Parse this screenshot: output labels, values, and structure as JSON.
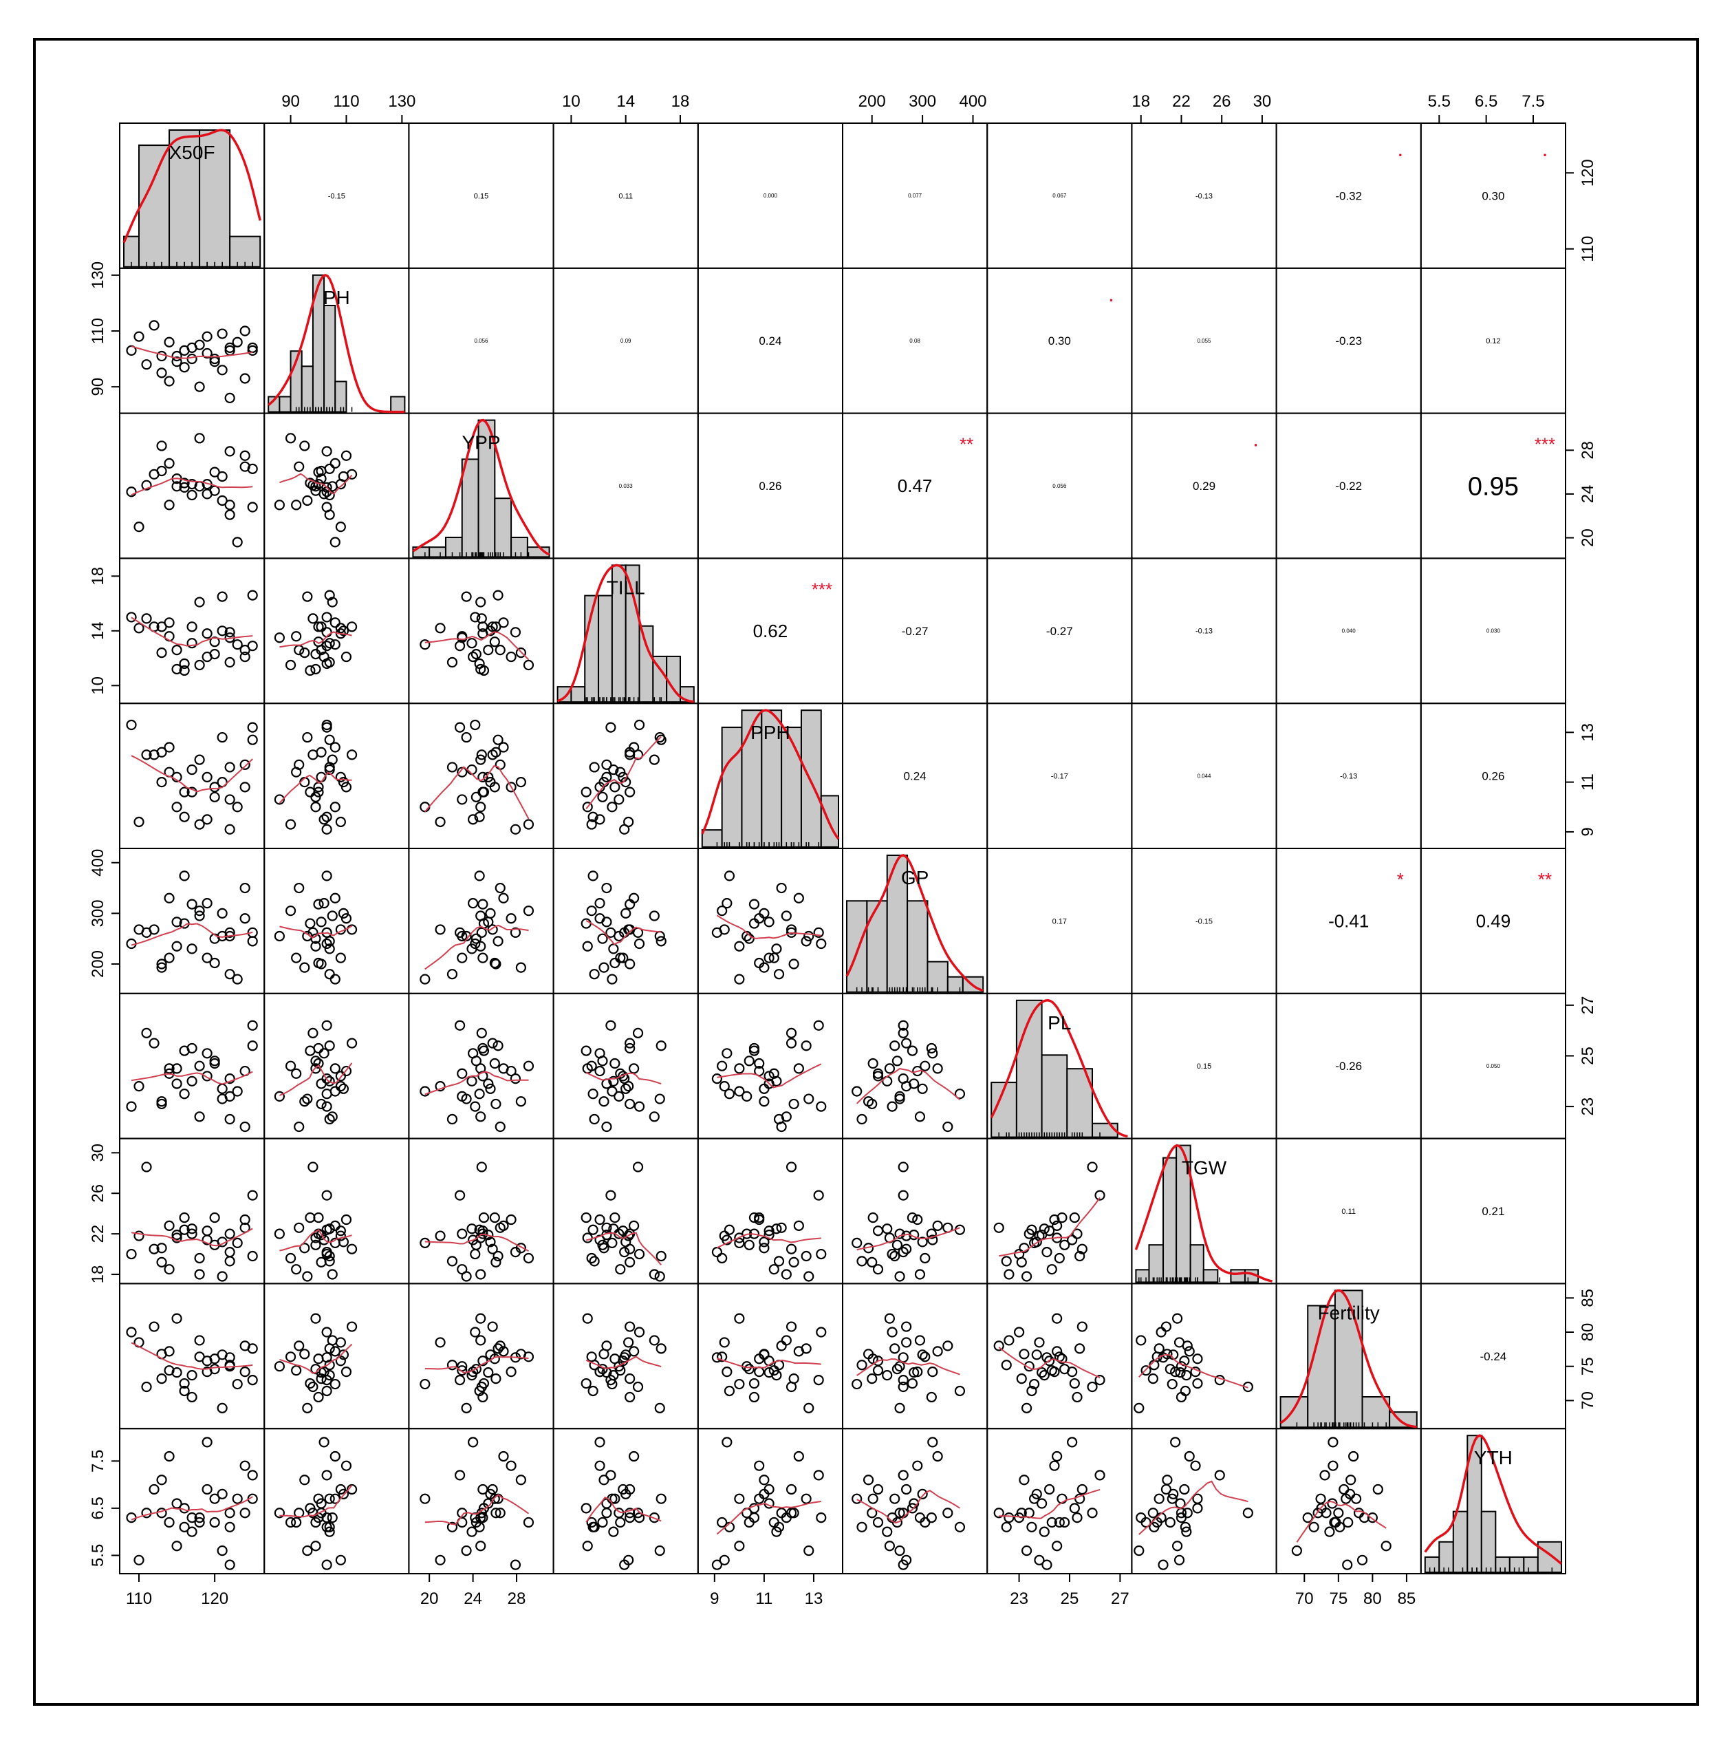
{
  "chart_data": {
    "type": "scatter-matrix",
    "variables": [
      "X50F",
      "PH",
      "YPP",
      "TILL",
      "PPH",
      "GP",
      "PL",
      "TGW",
      "Fertility",
      "YTH"
    ],
    "ranges": [
      [
        108,
        126
      ],
      [
        82,
        131
      ],
      [
        18.5,
        31
      ],
      [
        9,
        19
      ],
      [
        8.5,
        14
      ],
      [
        150,
        420
      ],
      [
        21.9,
        27.3
      ],
      [
        17.5,
        31
      ],
      [
        66.5,
        86.5
      ],
      [
        5.2,
        8.1
      ]
    ],
    "tick_values": [
      [
        110,
        120
      ],
      [
        90,
        110,
        130
      ],
      [
        20,
        24,
        28
      ],
      [
        10,
        14,
        18
      ],
      [
        9,
        11,
        13
      ],
      [
        200,
        300,
        400
      ],
      [
        23,
        25,
        27
      ],
      [
        18,
        22,
        26,
        30
      ],
      [
        70,
        75,
        80,
        85
      ],
      [
        5.5,
        6.5,
        7.5
      ]
    ],
    "axis_ticks": {
      "top": [
        {
          "var": "PH",
          "labels": [
            "90",
            "110",
            "130"
          ]
        },
        {
          "var": "TILL",
          "labels": [
            "10",
            "14",
            "18"
          ]
        },
        {
          "var": "GP",
          "labels": [
            "200",
            "300",
            "400"
          ]
        },
        {
          "var": "TGW",
          "labels": [
            "18",
            "22",
            "26",
            "30"
          ]
        },
        {
          "var": "YTH",
          "labels": [
            "5.5",
            "6.5",
            "7.5"
          ]
        }
      ],
      "bottom": [
        {
          "var": "X50F",
          "labels": [
            "110",
            "120"
          ]
        },
        {
          "var": "YPP",
          "labels": [
            "20",
            "24",
            "28"
          ]
        },
        {
          "var": "PPH",
          "labels": [
            "9",
            "11",
            "13"
          ]
        },
        {
          "var": "PL",
          "labels": [
            "23",
            "25",
            "27"
          ]
        },
        {
          "var": "Fertility",
          "labels": [
            "70",
            "75",
            "80",
            "85"
          ]
        }
      ],
      "left": [
        {
          "var": "PH",
          "labels": [
            "90",
            "110",
            "130"
          ]
        },
        {
          "var": "TILL",
          "labels": [
            "10",
            "14",
            "18"
          ]
        },
        {
          "var": "GP",
          "labels": [
            "200",
            "300",
            "400"
          ]
        },
        {
          "var": "TGW",
          "labels": [
            "18",
            "22",
            "26",
            "30"
          ]
        },
        {
          "var": "YTH",
          "labels": [
            "5.5",
            "6.5",
            "7.5"
          ]
        }
      ],
      "right": [
        {
          "var": "X50F",
          "labels": [
            "110",
            "120"
          ]
        },
        {
          "var": "YPP",
          "labels": [
            "20",
            "24",
            "28"
          ]
        },
        {
          "var": "PPH",
          "labels": [
            "9",
            "11",
            "13"
          ]
        },
        {
          "var": "PL",
          "labels": [
            "23",
            "25",
            "27"
          ]
        },
        {
          "var": "Fertility",
          "labels": [
            "70",
            "75",
            "80",
            "85"
          ]
        }
      ]
    },
    "correlations": [
      {
        "row": 0,
        "col": 1,
        "r": "-0.15",
        "stars": ""
      },
      {
        "row": 0,
        "col": 2,
        "r": "0.15",
        "stars": ""
      },
      {
        "row": 0,
        "col": 3,
        "r": "0.11",
        "stars": ""
      },
      {
        "row": 0,
        "col": 4,
        "r": "0.000",
        "stars": ""
      },
      {
        "row": 0,
        "col": 5,
        "r": "0.077",
        "stars": ""
      },
      {
        "row": 0,
        "col": 6,
        "r": "0.067",
        "stars": ""
      },
      {
        "row": 0,
        "col": 7,
        "r": "-0.13",
        "stars": ""
      },
      {
        "row": 0,
        "col": 8,
        "r": "-0.32",
        "stars": "."
      },
      {
        "row": 0,
        "col": 9,
        "r": "0.30",
        "stars": "."
      },
      {
        "row": 1,
        "col": 2,
        "r": "0.056",
        "stars": ""
      },
      {
        "row": 1,
        "col": 3,
        "r": "0.09",
        "stars": ""
      },
      {
        "row": 1,
        "col": 4,
        "r": "0.24",
        "stars": ""
      },
      {
        "row": 1,
        "col": 5,
        "r": "0.08",
        "stars": ""
      },
      {
        "row": 1,
        "col": 6,
        "r": "0.30",
        "stars": "."
      },
      {
        "row": 1,
        "col": 7,
        "r": "0.055",
        "stars": ""
      },
      {
        "row": 1,
        "col": 8,
        "r": "-0.23",
        "stars": ""
      },
      {
        "row": 1,
        "col": 9,
        "r": "0.12",
        "stars": ""
      },
      {
        "row": 2,
        "col": 3,
        "r": "0.033",
        "stars": ""
      },
      {
        "row": 2,
        "col": 4,
        "r": "0.26",
        "stars": ""
      },
      {
        "row": 2,
        "col": 5,
        "r": "0.47",
        "stars": "**"
      },
      {
        "row": 2,
        "col": 6,
        "r": "0.056",
        "stars": ""
      },
      {
        "row": 2,
        "col": 7,
        "r": "0.29",
        "stars": "."
      },
      {
        "row": 2,
        "col": 8,
        "r": "-0.22",
        "stars": ""
      },
      {
        "row": 2,
        "col": 9,
        "r": "0.95",
        "stars": "***"
      },
      {
        "row": 3,
        "col": 4,
        "r": "0.62",
        "stars": "***"
      },
      {
        "row": 3,
        "col": 5,
        "r": "-0.27",
        "stars": ""
      },
      {
        "row": 3,
        "col": 6,
        "r": "-0.27",
        "stars": ""
      },
      {
        "row": 3,
        "col": 7,
        "r": "-0.13",
        "stars": ""
      },
      {
        "row": 3,
        "col": 8,
        "r": "0.040",
        "stars": ""
      },
      {
        "row": 3,
        "col": 9,
        "r": "0.030",
        "stars": ""
      },
      {
        "row": 4,
        "col": 5,
        "r": "0.24",
        "stars": ""
      },
      {
        "row": 4,
        "col": 6,
        "r": "-0.17",
        "stars": ""
      },
      {
        "row": 4,
        "col": 7,
        "r": "0.044",
        "stars": ""
      },
      {
        "row": 4,
        "col": 8,
        "r": "-0.13",
        "stars": ""
      },
      {
        "row": 4,
        "col": 9,
        "r": "0.26",
        "stars": ""
      },
      {
        "row": 5,
        "col": 6,
        "r": "0.17",
        "stars": ""
      },
      {
        "row": 5,
        "col": 7,
        "r": "-0.15",
        "stars": ""
      },
      {
        "row": 5,
        "col": 8,
        "r": "-0.41",
        "stars": "*"
      },
      {
        "row": 5,
        "col": 9,
        "r": "0.49",
        "stars": "**"
      },
      {
        "row": 6,
        "col": 7,
        "r": "0.15",
        "stars": ""
      },
      {
        "row": 6,
        "col": 8,
        "r": "-0.26",
        "stars": ""
      },
      {
        "row": 6,
        "col": 9,
        "r": "0.050",
        "stars": ""
      },
      {
        "row": 7,
        "col": 8,
        "r": "0.11",
        "stars": ""
      },
      {
        "row": 7,
        "col": 9,
        "r": "0.21",
        "stars": ""
      },
      {
        "row": 8,
        "col": 9,
        "r": "-0.24",
        "stars": ""
      }
    ],
    "histograms": [
      {
        "var": "X50F",
        "breaks": [
          108,
          110,
          114,
          118,
          122,
          126
        ],
        "counts": [
          2,
          8,
          9,
          9,
          2
        ]
      },
      {
        "var": "PH",
        "breaks": [
          82,
          86,
          90,
          94,
          98,
          102,
          106,
          110,
          114,
          118,
          122,
          126,
          131
        ],
        "counts": [
          1,
          1,
          4,
          3,
          9,
          7,
          2,
          0,
          0,
          0,
          0,
          1
        ]
      },
      {
        "var": "YPP",
        "breaks": [
          18.5,
          20,
          21.5,
          23,
          24.5,
          26,
          27.5,
          29,
          31
        ],
        "counts": [
          1,
          1,
          2,
          10,
          14,
          6,
          2,
          1
        ]
      },
      {
        "var": "TILL",
        "breaks": [
          9,
          10,
          11,
          12,
          13,
          14,
          15,
          16,
          17,
          18,
          19
        ],
        "counts": [
          1,
          1,
          7,
          7,
          9,
          9,
          5,
          3,
          3,
          1
        ]
      },
      {
        "var": "PPH",
        "breaks": [
          8.5,
          9.3,
          10.1,
          10.9,
          11.7,
          12.5,
          13.3,
          14
        ],
        "counts": [
          1,
          7,
          8,
          8,
          7,
          8,
          3
        ]
      },
      {
        "var": "GP",
        "breaks": [
          150,
          190,
          230,
          270,
          310,
          350,
          380,
          420
        ],
        "counts": [
          6,
          6,
          9,
          6,
          2,
          1,
          1
        ]
      },
      {
        "var": "PL",
        "breaks": [
          21.9,
          22.9,
          23.9,
          24.9,
          25.9,
          26.9,
          27.3
        ],
        "counts": [
          4,
          10,
          6,
          5,
          1,
          0
        ]
      },
      {
        "var": "TGW",
        "breaks": [
          17.5,
          18.8,
          20.2,
          21.5,
          22.9,
          24.2,
          25.6,
          26.9,
          28.3,
          29.6,
          31
        ],
        "counts": [
          1,
          3,
          10,
          11,
          3,
          1,
          0,
          1,
          1,
          0
        ]
      },
      {
        "var": "Fertility",
        "breaks": [
          66.5,
          70.5,
          74.5,
          78.5,
          82.5,
          86.5
        ],
        "counts": [
          2,
          8,
          9,
          2,
          1
        ]
      },
      {
        "var": "YTH",
        "breaks": [
          5.2,
          5.5,
          5.8,
          6.1,
          6.4,
          6.7,
          7.0,
          7.3,
          7.6,
          8.1
        ],
        "counts": [
          1,
          2,
          4,
          9,
          4,
          1,
          1,
          1,
          2
        ]
      }
    ],
    "observations": [
      {
        "X50F": 109,
        "PH": 103,
        "YPP": 24.2,
        "TILL": 15.0,
        "PPH": 13.3,
        "GP": 240,
        "PL": 23.0,
        "TGW": 20.0,
        "Fertility": 80.0,
        "YTH": 6.3
      },
      {
        "X50F": 110,
        "PH": 108,
        "YPP": 21.0,
        "TILL": 14.2,
        "PPH": 9.4,
        "GP": 268,
        "PL": 23.8,
        "TGW": 21.8,
        "Fertility": 78.5,
        "YTH": 5.4
      },
      {
        "X50F": 111,
        "PH": 98,
        "YPP": 24.8,
        "TILL": 14.9,
        "PPH": 12.1,
        "GP": 262,
        "PL": 25.9,
        "TGW": 28.6,
        "Fertility": 72.0,
        "YTH": 6.4
      },
      {
        "X50F": 112,
        "PH": 112,
        "YPP": 25.8,
        "TILL": 14.3,
        "PPH": 12.1,
        "GP": 268,
        "PL": 25.5,
        "TGW": 20.5,
        "Fertility": 80.8,
        "YTH": 6.9
      },
      {
        "X50F": 113,
        "PH": 95,
        "YPP": 28.4,
        "TILL": 12.4,
        "PPH": 11.0,
        "GP": 193,
        "PL": 23.2,
        "TGW": 20.6,
        "Fertility": 76.8,
        "YTH": 7.1
      },
      {
        "X50F": 113,
        "PH": 101,
        "YPP": 26.1,
        "TILL": 14.3,
        "PPH": 12.2,
        "GP": 200,
        "PL": 23.1,
        "TGW": 19.2,
        "Fertility": 73.2,
        "YTH": 6.4
      },
      {
        "X50F": 114,
        "PH": 92,
        "YPP": 23.0,
        "TILL": 13.6,
        "PPH": 11.4,
        "GP": 212,
        "PL": 24.3,
        "TGW": 18.5,
        "Fertility": 74.4,
        "YTH": 6.2
      },
      {
        "X50F": 115,
        "PH": 99,
        "YPP": 24.7,
        "TILL": 11.2,
        "PPH": 10.0,
        "GP": 235,
        "PL": 24.5,
        "TGW": 21.6,
        "Fertility": 82.0,
        "YTH": 5.7
      },
      {
        "X50F": 116,
        "PH": 103,
        "YPP": 24.6,
        "TILL": 11.6,
        "PPH": 9.6,
        "GP": 374,
        "PL": 23.5,
        "TGW": 22.4,
        "Fertility": 71.4,
        "YTH": 6.1
      },
      {
        "X50F": 116,
        "PH": 97,
        "YPP": 25.0,
        "TILL": 11.1,
        "PPH": 10.6,
        "GP": 280,
        "PL": 25.2,
        "TGW": 23.6,
        "Fertility": 72.5,
        "YTH": 6.5
      },
      {
        "X50F": 117,
        "PH": 100,
        "YPP": 24.9,
        "TILL": 14.3,
        "PPH": 10.6,
        "GP": 318,
        "PL": 25.3,
        "TGW": 22.0,
        "Fertility": 70.5,
        "YTH": 6.3
      },
      {
        "X50F": 118,
        "PH": 105,
        "YPP": 24.7,
        "TILL": 16.1,
        "PPH": 11.9,
        "GP": 295,
        "PL": 22.6,
        "TGW": 18.0,
        "Fertility": 78.8,
        "YTH": 6.3
      },
      {
        "X50F": 118,
        "PH": 90,
        "YPP": 29.1,
        "TILL": 11.5,
        "PPH": 9.3,
        "GP": 305,
        "PL": 24.6,
        "TGW": 19.6,
        "Fertility": 76.4,
        "YTH": 6.2
      },
      {
        "X50F": 119,
        "PH": 102,
        "YPP": 24.0,
        "TILL": 12.1,
        "PPH": 9.5,
        "GP": 320,
        "PL": 25.1,
        "TGW": 21.4,
        "Fertility": 74.2,
        "YTH": 7.9
      },
      {
        "X50F": 120,
        "PH": 100,
        "YPP": 26.0,
        "TILL": 13.2,
        "PPH": 10.8,
        "GP": 202,
        "PL": 24.7,
        "TGW": 23.6,
        "Fertility": 76.1,
        "YTH": 6.7
      },
      {
        "X50F": 121,
        "PH": 96,
        "YPP": 23.4,
        "TILL": 16.5,
        "PPH": 12.8,
        "GP": 255,
        "PL": 23.3,
        "TGW": 17.8,
        "Fertility": 68.9,
        "YTH": 5.6
      },
      {
        "X50F": 122,
        "PH": 104,
        "YPP": 22.1,
        "TILL": 11.7,
        "PPH": 11.6,
        "GP": 180,
        "PL": 22.5,
        "TGW": 19.3,
        "Fertility": 75.2,
        "YTH": 6.1
      },
      {
        "X50F": 122,
        "PH": 103,
        "YPP": 27.9,
        "TILL": 13.9,
        "PPH": 9.1,
        "GP": 262,
        "PL": 24.1,
        "TGW": 20.2,
        "Fertility": 76.3,
        "YTH": 5.3
      },
      {
        "X50F": 123,
        "PH": 106,
        "YPP": 19.6,
        "TILL": 13.0,
        "PPH": 10.0,
        "GP": 170,
        "PL": 23.6,
        "TGW": 21.1,
        "Fertility": 72.4,
        "YTH": 6.7
      },
      {
        "X50F": 124,
        "PH": 93,
        "YPP": 26.5,
        "TILL": 12.6,
        "PPH": 11.7,
        "GP": 350,
        "PL": 22.2,
        "TGW": 22.6,
        "Fertility": 78.0,
        "YTH": 6.4
      },
      {
        "X50F": 124,
        "PH": 110,
        "YPP": 27.5,
        "TILL": 12.1,
        "PPH": 10.8,
        "GP": 290,
        "PL": 24.4,
        "TGW": 23.4,
        "Fertility": 74.2,
        "YTH": 7.4
      },
      {
        "X50F": 125,
        "PH": 104,
        "YPP": 26.3,
        "TILL": 16.6,
        "PPH": 12.7,
        "GP": 245,
        "PL": 25.4,
        "TGW": 19.8,
        "Fertility": 77.6,
        "YTH": 6.7
      },
      {
        "X50F": 125,
        "PH": 103,
        "YPP": 22.8,
        "TILL": 12.9,
        "PPH": 13.2,
        "GP": 262,
        "PL": 26.2,
        "TGW": 25.8,
        "Fertility": 73.0,
        "YTH": 7.2
      },
      {
        "X50F": 122,
        "PH": 86,
        "YPP": 23.0,
        "TILL": 13.5,
        "PPH": 10.3,
        "GP": 255,
        "PL": 23.4,
        "TGW": 22.0,
        "Fertility": 75.0,
        "YTH": 6.4
      },
      {
        "X50F": 119,
        "PH": 108,
        "YPP": 24.9,
        "TILL": 13.8,
        "PPH": 11.2,
        "GP": 212,
        "PL": 24.2,
        "TGW": 22.3,
        "Fertility": 75.8,
        "YTH": 6.9
      },
      {
        "X50F": 115,
        "PH": 101,
        "YPP": 25.4,
        "TILL": 12.6,
        "PPH": 11.2,
        "GP": 283,
        "PL": 23.9,
        "TGW": 21.9,
        "Fertility": 74.1,
        "YTH": 6.6
      },
      {
        "X50F": 117,
        "PH": 104,
        "YPP": 23.9,
        "TILL": 13.1,
        "PPH": 11.5,
        "GP": 230,
        "PL": 24.0,
        "TGW": 22.5,
        "Fertility": 73.7,
        "YTH": 6.0
      },
      {
        "X50F": 121,
        "PH": 109,
        "YPP": 25.6,
        "TILL": 14.0,
        "PPH": 11.0,
        "GP": 300,
        "PL": 23.7,
        "TGW": 21.2,
        "Fertility": 76.7,
        "YTH": 6.8
      },
      {
        "X50F": 120,
        "PH": 99,
        "YPP": 24.3,
        "TILL": 12.3,
        "PPH": 10.4,
        "GP": 250,
        "PL": 24.8,
        "TGW": 20.9,
        "Fertility": 74.6,
        "YTH": 6.2
      },
      {
        "X50F": 114,
        "PH": 106,
        "YPP": 26.8,
        "TILL": 14.6,
        "PPH": 12.4,
        "GP": 330,
        "PL": 24.5,
        "TGW": 22.8,
        "Fertility": 77.2,
        "YTH": 7.6
      }
    ]
  }
}
